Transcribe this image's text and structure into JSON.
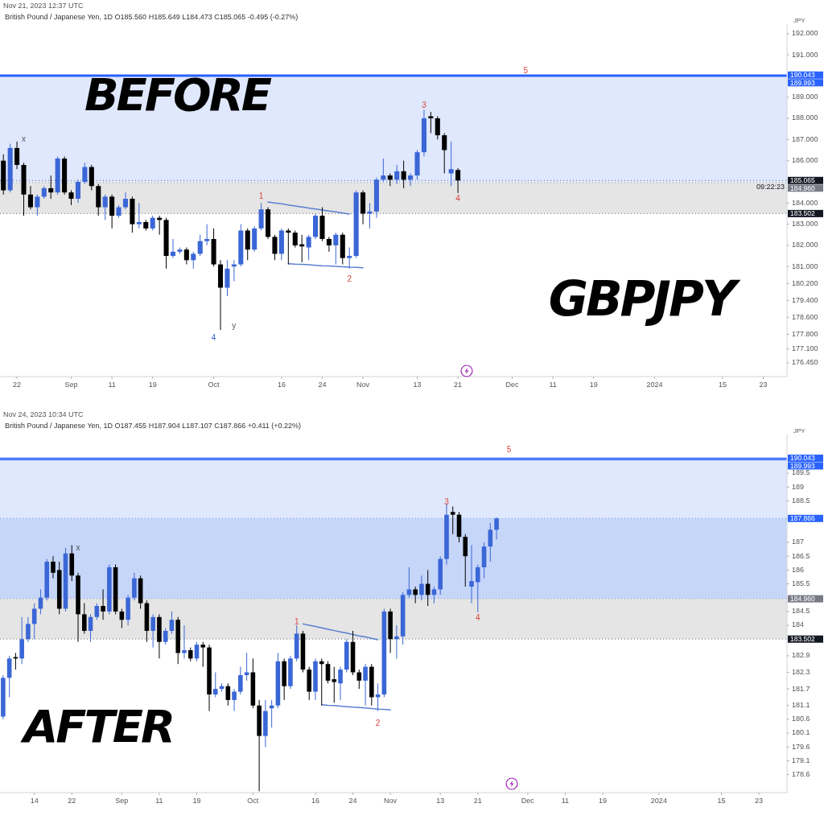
{
  "chart_data": [
    {
      "type": "candlestick",
      "title": "BEFORE",
      "subtitle": "Nov 21, 2023 12:37 UTC",
      "ylabel": "JPY",
      "categories": [
        null,
        null,
        "22",
        null,
        null,
        null,
        null,
        null,
        null,
        null,
        "Sep",
        null,
        null,
        null,
        null,
        null,
        "11",
        null,
        null,
        null,
        null,
        null,
        "19",
        null,
        null,
        null,
        null,
        null,
        null,
        null,
        null,
        "Oct",
        null,
        null,
        null,
        null,
        null,
        null,
        null,
        null,
        null,
        "16",
        null,
        null,
        null,
        null,
        null,
        "24",
        null,
        null,
        null,
        null,
        null,
        "Nov",
        null,
        null,
        null,
        null,
        null,
        null,
        null,
        "13",
        null,
        null,
        null,
        null,
        null,
        "21",
        null,
        null,
        null,
        null,
        null,
        null,
        null,
        "Dec",
        null,
        null,
        null,
        null,
        null,
        "11",
        null,
        null,
        null,
        null,
        null,
        "19",
        null,
        null,
        null,
        null,
        null,
        null,
        null,
        null,
        "2024",
        null,
        null,
        null,
        null,
        null,
        null,
        null,
        null,
        null,
        "15",
        null,
        null,
        null,
        null,
        null,
        "23",
        null,
        null,
        null
      ],
      "ylim": [
        175.8,
        192.45
      ],
      "yticks": [
        {
          "value": 176.45,
          "label": "176.450"
        },
        {
          "value": 177.1,
          "label": "177.100"
        },
        {
          "value": 177.8,
          "label": "177.800"
        },
        {
          "value": 178.6,
          "label": "178.600"
        },
        {
          "value": 179.4,
          "label": "179.400"
        },
        {
          "value": 180.2,
          "label": "180.200"
        },
        {
          "value": 181,
          "label": "181.000"
        },
        {
          "value": 182,
          "label": "182.000"
        },
        {
          "value": 183,
          "label": "183.000"
        },
        {
          "value": 184,
          "label": "184.000"
        },
        {
          "value": 186,
          "label": "186.000"
        },
        {
          "value": 187,
          "label": "187.000"
        },
        {
          "value": 188,
          "label": "188.000"
        },
        {
          "value": 189,
          "label": "189.000"
        },
        {
          "value": 191,
          "label": "191.000"
        },
        {
          "value": 192,
          "label": "192.000"
        }
      ],
      "colors": [
        "#000000",
        "#3a66d6",
        "#000000",
        "#000000",
        "#000000",
        "#3a66d6",
        "#3a66d6",
        "#000000",
        "#3a66d6",
        "#000000",
        "#000000",
        "#3a66d6",
        "#3a66d6",
        "#000000",
        "#000000",
        "#3a66d6",
        "#000000",
        "#3a66d6",
        "#3a66d6",
        "#000000",
        "#3a66d6",
        "#000000",
        "#3a66d6",
        "#000000",
        "#000000",
        "#3a66d6",
        "#3a66d6",
        "#000000",
        "#3a66d6",
        "#3a66d6",
        "#3a66d6",
        "#000000",
        "#000000",
        "#3a66d6",
        "#3a66d6",
        "#3a66d6",
        "#000000",
        "#3a66d6",
        "#3a66d6",
        "#000000",
        "#000000",
        "#3a66d6",
        "#000000",
        "#000000",
        "#000000",
        "#3a66d6",
        "#3a66d6",
        "#000000",
        "#000000",
        "#3a66d6",
        "#000000",
        "#3a66d6",
        "#3a66d6",
        "#000000",
        "#3a66d6",
        "#3a66d6",
        "#3a66d6",
        "#000000",
        "#3a66d6",
        "#000000",
        "#3a66d6",
        "#3a66d6",
        "#3a66d6",
        "#000000",
        "#000000",
        "#000000",
        "#3a66d6",
        "#000000",
        null,
        null,
        null,
        null,
        null,
        null,
        null,
        null,
        null,
        null,
        null,
        null,
        null,
        null,
        null,
        null,
        null,
        null,
        null,
        null,
        null,
        null,
        null,
        null,
        null,
        null,
        null,
        null,
        null,
        null,
        null,
        null,
        null,
        null,
        null,
        null,
        null,
        null,
        null,
        null,
        null,
        null,
        null,
        null,
        null,
        null,
        null,
        null
      ],
      "ohlc": [
        [
          186.0,
          186.3,
          184.4,
          184.6
        ],
        [
          184.6,
          186.8,
          184.5,
          186.6
        ],
        [
          186.6,
          186.9,
          185.6,
          185.8
        ],
        [
          185.8,
          185.9,
          183.4,
          184.4
        ],
        [
          184.4,
          184.8,
          183.7,
          183.8
        ],
        [
          183.8,
          184.4,
          183.4,
          184.3
        ],
        [
          184.3,
          184.8,
          184.2,
          184.7
        ],
        [
          184.7,
          185.3,
          184.2,
          184.5
        ],
        [
          184.5,
          186.2,
          184.4,
          186.1
        ],
        [
          186.1,
          186.2,
          184.4,
          184.5
        ],
        [
          184.5,
          184.6,
          183.9,
          184.2
        ],
        [
          184.2,
          185.1,
          184.0,
          185.0
        ],
        [
          185.0,
          185.9,
          184.9,
          185.7
        ],
        [
          185.7,
          185.8,
          184.6,
          184.8
        ],
        [
          184.8,
          184.9,
          183.4,
          183.8
        ],
        [
          183.8,
          184.4,
          183.2,
          184.3
        ],
        [
          184.3,
          184.4,
          182.8,
          183.4
        ],
        [
          183.4,
          183.9,
          183.3,
          183.8
        ],
        [
          183.8,
          184.5,
          183.7,
          184.2
        ],
        [
          184.2,
          184.3,
          182.6,
          183.0
        ],
        [
          183.0,
          184.0,
          182.8,
          183.1
        ],
        [
          183.1,
          183.2,
          182.7,
          182.8
        ],
        [
          182.8,
          183.4,
          182.7,
          183.3
        ],
        [
          183.3,
          183.4,
          182.5,
          183.2
        ],
        [
          183.2,
          183.3,
          180.9,
          181.5
        ],
        [
          181.5,
          182.3,
          181.4,
          181.7
        ],
        [
          181.7,
          181.9,
          181.6,
          181.8
        ],
        [
          181.8,
          181.9,
          181.1,
          181.3
        ],
        [
          181.3,
          181.7,
          180.9,
          181.6
        ],
        [
          181.6,
          182.5,
          181.5,
          182.2
        ],
        [
          182.2,
          183.0,
          182.0,
          182.3
        ],
        [
          182.3,
          182.8,
          181.0,
          181.1
        ],
        [
          181.1,
          181.3,
          178.0,
          180.0
        ],
        [
          180.0,
          181.3,
          179.6,
          180.9
        ],
        [
          181.0,
          181.3,
          180.3,
          181.1
        ],
        [
          181.1,
          183.0,
          181.0,
          182.7
        ],
        [
          182.7,
          182.8,
          181.3,
          181.8
        ],
        [
          181.8,
          182.9,
          181.7,
          182.8
        ],
        [
          182.8,
          184.0,
          182.7,
          183.7
        ],
        [
          183.7,
          183.8,
          182.3,
          182.4
        ],
        [
          182.4,
          182.5,
          181.3,
          181.6
        ],
        [
          181.6,
          182.8,
          181.3,
          182.7
        ],
        [
          182.7,
          182.8,
          181.1,
          182.6
        ],
        [
          182.6,
          182.7,
          181.9,
          182.0
        ],
        [
          182.05,
          182.5,
          181.2,
          181.95
        ],
        [
          181.9,
          182.5,
          181.3,
          182.4
        ],
        [
          182.4,
          183.5,
          182.3,
          183.4
        ],
        [
          183.4,
          183.8,
          182.2,
          182.3
        ],
        [
          182.3,
          182.4,
          181.7,
          182.0
        ],
        [
          182.0,
          182.6,
          181.1,
          182.5
        ],
        [
          182.5,
          182.6,
          181.1,
          181.4
        ],
        [
          181.4,
          181.9,
          180.9,
          181.5
        ],
        [
          181.5,
          184.6,
          181.4,
          184.5
        ],
        [
          184.5,
          184.6,
          183.0,
          183.5
        ],
        [
          183.5,
          184.0,
          182.8,
          183.6
        ],
        [
          183.6,
          185.2,
          183.3,
          185.1
        ],
        [
          185.1,
          186.1,
          185.0,
          185.3
        ],
        [
          185.3,
          185.4,
          184.8,
          185.1
        ],
        [
          185.1,
          185.8,
          184.9,
          185.5
        ],
        [
          185.5,
          186.0,
          184.7,
          185.1
        ],
        [
          185.1,
          185.4,
          184.8,
          185.3
        ],
        [
          185.3,
          186.5,
          185.1,
          186.4
        ],
        [
          186.4,
          188.4,
          186.2,
          188.0
        ],
        [
          188.1,
          188.3,
          187.3,
          188.0
        ],
        [
          188.0,
          188.1,
          187.0,
          187.2
        ],
        [
          187.2,
          187.3,
          185.4,
          186.5
        ],
        [
          185.4,
          186.9,
          184.8,
          185.6
        ],
        [
          185.56,
          185.649,
          184.473,
          185.065
        ],
        null,
        null,
        null,
        null,
        null,
        null,
        null,
        null,
        null,
        null,
        null,
        null,
        null,
        null,
        null,
        null,
        null,
        null,
        null,
        null,
        null,
        null,
        null,
        null,
        null,
        null,
        null,
        null,
        null,
        null,
        null,
        null,
        null,
        null,
        null,
        null,
        null,
        null,
        null,
        null,
        null,
        null,
        null,
        null,
        null,
        null,
        null,
        null
      ],
      "series": [
        {
          "type": "line",
          "color": "#5a7fd0",
          "values": [
            null,
            null,
            null,
            null,
            null,
            null,
            null,
            null,
            null,
            null,
            null,
            null,
            null,
            null,
            null,
            null,
            null,
            null,
            null,
            null,
            null,
            null,
            null,
            null,
            null,
            null,
            null,
            null,
            null,
            null,
            null,
            null,
            null,
            null,
            null,
            null,
            null,
            null,
            null,
            184.05,
            184.0,
            183.96,
            183.91,
            183.86,
            183.81,
            183.76,
            183.72,
            183.67,
            183.62,
            183.58,
            183.53,
            183.48,
            null,
            null,
            null,
            null,
            null,
            null,
            null,
            null,
            null,
            null,
            null,
            null,
            null,
            null,
            null,
            null,
            null,
            null,
            null,
            null,
            null,
            null,
            null,
            null,
            null,
            null,
            null,
            null,
            null,
            null,
            null,
            null,
            null,
            null,
            null,
            null,
            null,
            null,
            null,
            null,
            null,
            null,
            null,
            null,
            null,
            null,
            null,
            null,
            null,
            null,
            null,
            null,
            null,
            null,
            null,
            null,
            null,
            null,
            null,
            null,
            null,
            null,
            null,
            null
          ]
        },
        {
          "type": "line",
          "color": "#5a7fd0",
          "values": [
            null,
            null,
            null,
            null,
            null,
            null,
            null,
            null,
            null,
            null,
            null,
            null,
            null,
            null,
            null,
            null,
            null,
            null,
            null,
            null,
            null,
            null,
            null,
            null,
            null,
            null,
            null,
            null,
            null,
            null,
            null,
            null,
            null,
            null,
            null,
            null,
            null,
            null,
            null,
            null,
            null,
            null,
            181.13,
            181.11,
            181.1,
            181.08,
            181.06,
            181.04,
            181.03,
            181.01,
            180.99,
            180.97,
            180.96,
            180.94,
            null,
            null,
            null,
            null,
            null,
            null,
            null,
            null,
            null,
            null,
            null,
            null,
            null,
            null,
            null,
            null,
            null,
            null,
            null,
            null,
            null,
            null,
            null,
            null,
            null,
            null,
            null,
            null,
            null,
            null,
            null,
            null,
            null,
            null,
            null,
            null,
            null,
            null,
            null,
            null,
            null,
            null,
            null,
            null,
            null,
            null,
            null,
            null,
            null,
            null,
            null,
            null,
            null,
            null,
            null,
            null,
            null,
            null,
            null,
            null,
            null,
            null
          ]
        }
      ],
      "ref_lines": [
        {
          "axis": "y",
          "value": 190.043,
          "label": "190.043",
          "color": "#2962ff",
          "line_style": "solid"
        },
        {
          "axis": "y",
          "value": 189.993,
          "label": "189.993",
          "color": "#2962ff",
          "line_style": "solid"
        },
        {
          "axis": "y",
          "value": 185.065,
          "label": "185.065",
          "color": "#131722",
          "line_style": "dotted"
        },
        {
          "axis": "y",
          "value": 184.96,
          "label": "184.960",
          "color": "#787b86",
          "line_style": "dotted"
        },
        {
          "axis": "y",
          "value": 183.502,
          "label": "183.502",
          "color": "#131722",
          "line_style": "dotted"
        }
      ],
      "bands": [
        {
          "axis": "y",
          "from": 184.96,
          "to": 189.993,
          "color": "#d4e0fb"
        },
        {
          "axis": "y",
          "from": 183.502,
          "to": 184.96,
          "color": "#dcdcdc"
        }
      ],
      "annotations": [
        "British Pound / Japanese Yen, 1D O185.560 H185.649 L184.473 C185.065 -0.495 (-0.27%)",
        "09:22:23",
        "GBPJPY",
        "x",
        "1",
        "2",
        "3",
        "4",
        "5",
        "y",
        "4"
      ]
    },
    {
      "type": "candlestick",
      "title": "AFTER",
      "subtitle": "Nov 24, 2023 10:34 UTC",
      "ylabel": "JPY",
      "categories": [
        null,
        null,
        null,
        null,
        null,
        "14",
        null,
        null,
        null,
        null,
        null,
        "22",
        null,
        null,
        null,
        null,
        null,
        null,
        null,
        "Sep",
        null,
        null,
        null,
        null,
        null,
        "11",
        null,
        null,
        null,
        null,
        null,
        "19",
        null,
        null,
        null,
        null,
        null,
        null,
        null,
        null,
        "Oct",
        null,
        null,
        null,
        null,
        null,
        null,
        null,
        null,
        null,
        "16",
        null,
        null,
        null,
        null,
        null,
        "24",
        null,
        null,
        null,
        null,
        null,
        "Nov",
        null,
        null,
        null,
        null,
        null,
        null,
        null,
        "13",
        null,
        null,
        null,
        null,
        null,
        "21",
        null,
        null,
        null,
        null,
        null,
        null,
        null,
        "Dec",
        null,
        null,
        null,
        null,
        null,
        "11",
        null,
        null,
        null,
        null,
        null,
        "19",
        null,
        null,
        null,
        null,
        null,
        null,
        null,
        null,
        "2024",
        null,
        null,
        null,
        null,
        null,
        null,
        null,
        null,
        null,
        "15",
        null,
        null,
        null,
        null,
        null,
        "23",
        null,
        null,
        null,
        null
      ],
      "ylim": [
        177.95,
        190.9
      ],
      "yticks": [
        178.6,
        179.1,
        179.6,
        180.1,
        180.6,
        181.1,
        181.7,
        182.3,
        182.9,
        184,
        184.5,
        185.5,
        186,
        186.5,
        187,
        188.5,
        189,
        189.5
      ],
      "colors": [
        "#3a66d6",
        "#3a66d6",
        "#000000",
        "#3a66d6",
        "#3a66d6",
        "#3a66d6",
        "#3a66d6",
        "#3a66d6",
        "#000000",
        "#000000",
        "#3a66d6",
        "#000000",
        "#000000",
        "#000000",
        "#3a66d6",
        "#3a66d6",
        "#000000",
        "#3a66d6",
        "#000000",
        "#000000",
        "#3a66d6",
        "#3a66d6",
        "#000000",
        "#000000",
        "#3a66d6",
        "#000000",
        "#3a66d6",
        "#3a66d6",
        "#000000",
        "#3a66d6",
        "#000000",
        "#3a66d6",
        "#000000",
        "#000000",
        "#3a66d6",
        "#3a66d6",
        "#000000",
        "#3a66d6",
        "#3a66d6",
        "#3a66d6",
        "#000000",
        "#000000",
        "#3a66d6",
        "#3a66d6",
        "#3a66d6",
        "#000000",
        "#3a66d6",
        "#3a66d6",
        "#000000",
        "#000000",
        "#3a66d6",
        "#000000",
        "#000000",
        "#000000",
        "#3a66d6",
        "#3a66d6",
        "#000000",
        "#000000",
        "#3a66d6",
        "#000000",
        "#3a66d6",
        "#3a66d6",
        "#000000",
        "#3a66d6",
        "#3a66d6",
        "#3a66d6",
        "#000000",
        "#3a66d6",
        "#000000",
        "#3a66d6",
        "#3a66d6",
        "#3a66d6",
        "#000000",
        "#000000",
        "#000000",
        "#3a66d6",
        "#3a66d6",
        "#3a66d6",
        "#3a66d6",
        "#3a66d6",
        null,
        null,
        null,
        null,
        null,
        null,
        null,
        null,
        null,
        null,
        null,
        null,
        null,
        null,
        null,
        null,
        null,
        null,
        null,
        null,
        null,
        null,
        null,
        null,
        null,
        null,
        null,
        null,
        null,
        null,
        null,
        null,
        null,
        null,
        null,
        null,
        null,
        null,
        null,
        null,
        null,
        null,
        null,
        null,
        null,
        null
      ],
      "ohlc": [
        [
          180.7,
          182.2,
          180.6,
          182.1
        ],
        [
          182.1,
          182.9,
          181.4,
          182.8
        ],
        [
          182.85,
          183.0,
          182.4,
          182.8
        ],
        [
          182.8,
          184.3,
          182.6,
          183.5
        ],
        [
          183.5,
          184.3,
          183.4,
          184.05
        ],
        [
          184.05,
          184.8,
          183.5,
          184.6
        ],
        [
          184.6,
          185.3,
          184.4,
          185.0
        ],
        [
          185.0,
          186.4,
          184.9,
          186.3
        ],
        [
          186.3,
          186.5,
          185.7,
          185.9
        ],
        [
          186.0,
          186.3,
          184.4,
          184.6
        ],
        [
          184.6,
          186.8,
          184.5,
          186.6
        ],
        [
          186.6,
          186.9,
          185.6,
          185.8
        ],
        [
          185.8,
          185.9,
          183.4,
          184.4
        ],
        [
          184.4,
          184.8,
          183.7,
          183.8
        ],
        [
          183.8,
          184.4,
          183.4,
          184.3
        ],
        [
          184.3,
          184.8,
          184.2,
          184.7
        ],
        [
          184.7,
          185.3,
          184.2,
          184.5
        ],
        [
          184.5,
          186.2,
          184.4,
          186.1
        ],
        [
          186.1,
          186.2,
          184.4,
          184.5
        ],
        [
          184.5,
          184.6,
          183.9,
          184.2
        ],
        [
          184.2,
          185.1,
          184.0,
          185.0
        ],
        [
          185.0,
          185.9,
          184.9,
          185.7
        ],
        [
          185.7,
          185.8,
          184.6,
          184.8
        ],
        [
          184.8,
          184.9,
          183.4,
          183.8
        ],
        [
          183.8,
          184.4,
          183.2,
          184.3
        ],
        [
          184.3,
          184.4,
          182.8,
          183.4
        ],
        [
          183.4,
          183.9,
          183.3,
          183.8
        ],
        [
          183.8,
          184.5,
          183.7,
          184.2
        ],
        [
          184.2,
          184.3,
          182.6,
          183.0
        ],
        [
          183.0,
          184.0,
          182.8,
          183.1
        ],
        [
          183.1,
          183.2,
          182.7,
          182.8
        ],
        [
          182.8,
          183.4,
          182.7,
          183.3
        ],
        [
          183.3,
          183.4,
          182.5,
          183.2
        ],
        [
          183.2,
          183.3,
          180.9,
          181.5
        ],
        [
          181.5,
          182.3,
          181.4,
          181.7
        ],
        [
          181.7,
          181.9,
          181.6,
          181.8
        ],
        [
          181.8,
          181.9,
          181.1,
          181.3
        ],
        [
          181.3,
          181.7,
          180.9,
          181.6
        ],
        [
          181.6,
          182.5,
          181.5,
          182.2
        ],
        [
          182.2,
          183.0,
          182.0,
          182.3
        ],
        [
          182.3,
          182.8,
          181.0,
          181.1
        ],
        [
          181.1,
          181.3,
          178.0,
          180.0
        ],
        [
          180.0,
          181.3,
          179.6,
          180.9
        ],
        [
          181.0,
          181.3,
          180.3,
          181.1
        ],
        [
          181.1,
          183.0,
          181.0,
          182.7
        ],
        [
          182.7,
          182.8,
          181.3,
          181.8
        ],
        [
          181.8,
          182.9,
          181.7,
          182.8
        ],
        [
          182.8,
          184.0,
          182.7,
          183.7
        ],
        [
          183.7,
          183.8,
          182.3,
          182.4
        ],
        [
          182.4,
          182.5,
          181.3,
          181.6
        ],
        [
          181.6,
          182.8,
          181.3,
          182.7
        ],
        [
          182.7,
          182.8,
          181.1,
          182.6
        ],
        [
          182.6,
          182.7,
          181.9,
          182.0
        ],
        [
          182.05,
          182.5,
          181.2,
          181.95
        ],
        [
          181.9,
          182.5,
          181.3,
          182.4
        ],
        [
          182.4,
          183.5,
          182.3,
          183.4
        ],
        [
          183.4,
          183.8,
          182.2,
          182.3
        ],
        [
          182.3,
          182.4,
          181.7,
          182.0
        ],
        [
          182.0,
          182.6,
          181.1,
          182.5
        ],
        [
          182.5,
          182.6,
          181.1,
          181.4
        ],
        [
          181.4,
          181.9,
          180.9,
          181.5
        ],
        [
          181.5,
          184.6,
          181.4,
          184.5
        ],
        [
          184.5,
          184.6,
          183.0,
          183.5
        ],
        [
          183.5,
          184.0,
          182.8,
          183.6
        ],
        [
          183.6,
          185.2,
          183.3,
          185.1
        ],
        [
          185.1,
          186.1,
          185.0,
          185.3
        ],
        [
          185.3,
          185.4,
          184.8,
          185.1
        ],
        [
          185.1,
          185.8,
          184.9,
          185.5
        ],
        [
          185.5,
          186.0,
          184.7,
          185.1
        ],
        [
          185.1,
          185.4,
          184.8,
          185.3
        ],
        [
          185.3,
          186.5,
          185.1,
          186.4
        ],
        [
          186.4,
          188.4,
          186.2,
          188.0
        ],
        [
          188.1,
          188.3,
          187.3,
          188.0
        ],
        [
          188.0,
          188.1,
          187.0,
          187.2
        ],
        [
          187.2,
          187.3,
          185.4,
          186.5
        ],
        [
          185.4,
          186.9,
          184.8,
          185.6
        ],
        [
          185.56,
          186.2,
          184.473,
          186.1
        ],
        [
          186.1,
          187.0,
          185.7,
          186.85
        ],
        [
          186.85,
          187.7,
          186.3,
          187.455
        ],
        [
          187.455,
          187.904,
          187.107,
          187.866
        ],
        null,
        null,
        null,
        null,
        null,
        null,
        null,
        null,
        null,
        null,
        null,
        null,
        null,
        null,
        null,
        null,
        null,
        null,
        null,
        null,
        null,
        null,
        null,
        null,
        null,
        null,
        null,
        null,
        null,
        null,
        null,
        null,
        null,
        null,
        null,
        null,
        null,
        null,
        null,
        null,
        null,
        null,
        null,
        null,
        null,
        null
      ],
      "series": [
        {
          "type": "line",
          "color": "#5a7fd0",
          "values": [
            null,
            null,
            null,
            null,
            null,
            null,
            null,
            null,
            null,
            null,
            null,
            null,
            null,
            null,
            null,
            null,
            null,
            null,
            null,
            null,
            null,
            null,
            null,
            null,
            null,
            null,
            null,
            null,
            null,
            null,
            null,
            null,
            null,
            null,
            null,
            null,
            null,
            null,
            null,
            null,
            null,
            null,
            null,
            null,
            null,
            null,
            null,
            null,
            184.05,
            184.0,
            183.96,
            183.91,
            183.86,
            183.81,
            183.76,
            183.72,
            183.67,
            183.62,
            183.58,
            183.53,
            183.48,
            null,
            null,
            null,
            null,
            null,
            null,
            null,
            null,
            null,
            null,
            null,
            null,
            null,
            null,
            null,
            null,
            null,
            null,
            null,
            null,
            null,
            null,
            null,
            null,
            null,
            null,
            null,
            null,
            null,
            null,
            null,
            null,
            null,
            null,
            null,
            null,
            null,
            null,
            null,
            null,
            null,
            null,
            null,
            null,
            null,
            null,
            null,
            null,
            null,
            null,
            null,
            null,
            null,
            null,
            null,
            null,
            null,
            null,
            null,
            null,
            null,
            null,
            null,
            null,
            null
          ]
        },
        {
          "type": "line",
          "color": "#5a7fd0",
          "values": [
            null,
            null,
            null,
            null,
            null,
            null,
            null,
            null,
            null,
            null,
            null,
            null,
            null,
            null,
            null,
            null,
            null,
            null,
            null,
            null,
            null,
            null,
            null,
            null,
            null,
            null,
            null,
            null,
            null,
            null,
            null,
            null,
            null,
            null,
            null,
            null,
            null,
            null,
            null,
            null,
            null,
            null,
            null,
            null,
            null,
            null,
            null,
            null,
            null,
            null,
            null,
            181.13,
            181.11,
            181.1,
            181.08,
            181.06,
            181.04,
            181.03,
            181.01,
            180.99,
            180.97,
            180.96,
            180.94,
            null,
            null,
            null,
            null,
            null,
            null,
            null,
            null,
            null,
            null,
            null,
            null,
            null,
            null,
            null,
            null,
            null,
            null,
            null,
            null,
            null,
            null,
            null,
            null,
            null,
            null,
            null,
            null,
            null,
            null,
            null,
            null,
            null,
            null,
            null,
            null,
            null,
            null,
            null,
            null,
            null,
            null,
            null,
            null,
            null,
            null,
            null,
            null,
            null,
            null,
            null,
            null,
            null,
            null,
            null,
            null,
            null,
            null,
            null,
            null,
            null,
            null,
            null
          ]
        }
      ],
      "ref_lines": [
        {
          "axis": "y",
          "value": 190.043,
          "label": "190.043",
          "color": "#2962ff",
          "line_style": "solid"
        },
        {
          "axis": "y",
          "value": 189.993,
          "label": "189.993",
          "color": "#2962ff",
          "line_style": "solid"
        },
        {
          "axis": "y",
          "value": 187.866,
          "label": "187.866",
          "color": "#2962ff",
          "line_style": "dotted"
        },
        {
          "axis": "y",
          "value": 184.96,
          "label": "184.960",
          "color": "#787b86",
          "line_style": "dotted"
        },
        {
          "axis": "y",
          "value": 183.502,
          "label": "183.502",
          "color": "#131722",
          "line_style": "dotted"
        }
      ],
      "bands": [
        {
          "axis": "y",
          "from": 187.866,
          "to": 189.993,
          "color": "#d4e0fb"
        },
        {
          "axis": "y",
          "from": 184.96,
          "to": 187.866,
          "color": "#b3c8f7"
        },
        {
          "axis": "y",
          "from": 183.502,
          "to": 184.96,
          "color": "#dcdcdc"
        }
      ],
      "annotations": [
        "British Pound / Japanese Yen, 1D O187.455 H187.904 L187.107 C187.866 +0.411 (+0.22%)",
        "x",
        "1",
        "2",
        "3",
        "4",
        "5"
      ]
    }
  ]
}
